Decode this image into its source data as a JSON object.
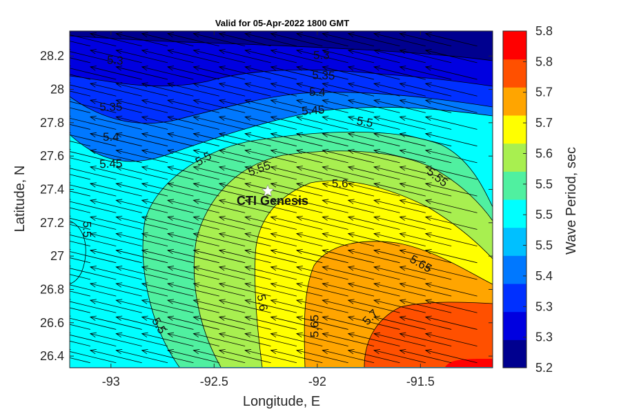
{
  "chart_data": {
    "type": "contour",
    "title": "Valid for 05-Apr-2022 1800 GMT",
    "xlabel": "Longitude, E",
    "ylabel": "Latitude, N",
    "xlim": [
      -93.2,
      -91.15
    ],
    "ylim": [
      26.33,
      28.35
    ],
    "xticks": [
      -93,
      -92.5,
      -92,
      -91.5
    ],
    "yticks": [
      26.4,
      26.6,
      26.8,
      27,
      27.2,
      27.4,
      27.6,
      27.8,
      28,
      28.2
    ],
    "colorbar": {
      "label": "Wave Period, sec",
      "tick_labels": [
        "5.2",
        "5.3",
        "5.3",
        "5.4",
        "5.5",
        "5.5",
        "5.5",
        "5.6",
        "5.7",
        "5.7",
        "5.8",
        "5.8"
      ],
      "colors": [
        "#00008f",
        "#0000e0",
        "#0030ff",
        "#0078ff",
        "#00c0ff",
        "#00ffff",
        "#50f0a0",
        "#a8ef50",
        "#ffff00",
        "#ffa500",
        "#ff5000",
        "#ff0000"
      ]
    },
    "contour_labels": [
      {
        "text": "5.3",
        "lon": -92.98,
        "lat": 28.17
      },
      {
        "text": "5.3",
        "lon": -91.98,
        "lat": 28.2
      },
      {
        "text": "5.35",
        "lon": -91.97,
        "lat": 28.08
      },
      {
        "text": "5.4",
        "lon": -92.0,
        "lat": 27.98
      },
      {
        "text": "5.45",
        "lon": -92.02,
        "lat": 27.87
      },
      {
        "text": "5.35",
        "lon": -93.0,
        "lat": 27.89
      },
      {
        "text": "5.4",
        "lon": -93.0,
        "lat": 27.71
      },
      {
        "text": "5.45",
        "lon": -93.0,
        "lat": 27.55
      },
      {
        "text": "5.5",
        "lon": -91.77,
        "lat": 27.8
      },
      {
        "text": "5.55",
        "lon": -91.42,
        "lat": 27.47
      },
      {
        "text": "5.5",
        "lon": -92.55,
        "lat": 27.58
      },
      {
        "text": "5.55",
        "lon": -92.28,
        "lat": 27.52
      },
      {
        "text": "5.6",
        "lon": -91.89,
        "lat": 27.43
      },
      {
        "text": "5.5",
        "lon": -93.12,
        "lat": 27.16
      },
      {
        "text": "5.65",
        "lon": -91.5,
        "lat": 26.95
      },
      {
        "text": "5.6",
        "lon": -92.27,
        "lat": 26.72
      },
      {
        "text": "5.65",
        "lon": -92.01,
        "lat": 26.58
      },
      {
        "text": "5.7",
        "lon": -91.74,
        "lat": 26.63
      },
      {
        "text": "5.5",
        "lon": -92.77,
        "lat": 26.58
      }
    ],
    "site": {
      "name": "CTI Genesis",
      "lon": -92.24,
      "lat": 27.39
    },
    "vector_field": {
      "description_of_direction": "arrows point toward west-northwest",
      "dx_deg": -0.25,
      "dy_deg": 0.075
    }
  }
}
